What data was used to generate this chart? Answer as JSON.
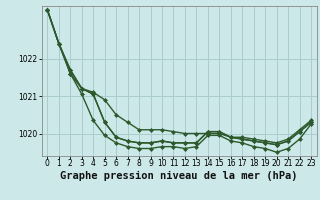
{
  "background_color": "#cce8e8",
  "grid_color": "#aacccc",
  "line_color": "#2d5a2d",
  "marker": "D",
  "markersize": 2.0,
  "linewidth": 1.0,
  "title": "Graphe pression niveau de la mer (hPa)",
  "title_fontsize": 7.5,
  "xlim": [
    -0.5,
    23.5
  ],
  "ylim": [
    1019.4,
    1023.4
  ],
  "yticks": [
    1020,
    1021,
    1022
  ],
  "xticks": [
    0,
    1,
    2,
    3,
    4,
    5,
    6,
    7,
    8,
    9,
    10,
    11,
    12,
    13,
    14,
    15,
    16,
    17,
    18,
    19,
    20,
    21,
    22,
    23
  ],
  "series": [
    [
      1023.3,
      1022.4,
      1021.7,
      1021.2,
      1021.1,
      1020.9,
      1020.5,
      1020.3,
      1020.1,
      1020.1,
      1020.1,
      1020.05,
      1020.0,
      1020.0,
      1020.0,
      1020.0,
      1019.9,
      1019.9,
      1019.85,
      1019.8,
      1019.75,
      1019.85,
      1020.1,
      1020.35
    ],
    [
      1023.3,
      1022.4,
      1021.6,
      1021.2,
      1021.05,
      1020.3,
      1019.9,
      1019.8,
      1019.75,
      1019.75,
      1019.8,
      1019.75,
      1019.75,
      1019.75,
      1020.05,
      1020.05,
      1019.9,
      1019.85,
      1019.8,
      1019.75,
      1019.7,
      1019.8,
      1020.05,
      1020.3
    ],
    [
      1023.3,
      1022.4,
      1021.6,
      1021.05,
      1020.35,
      1019.95,
      1019.75,
      1019.65,
      1019.6,
      1019.6,
      1019.65,
      1019.65,
      1019.6,
      1019.65,
      1019.95,
      1019.95,
      1019.8,
      1019.75,
      1019.65,
      1019.6,
      1019.5,
      1019.6,
      1019.85,
      1020.25
    ],
    [
      1023.3,
      1022.4,
      1021.7,
      1021.2,
      1021.05,
      1020.3,
      1019.9,
      1019.8,
      1019.75,
      1019.75,
      1019.8,
      1019.75,
      1019.75,
      1019.75,
      1020.05,
      1020.05,
      1019.9,
      1019.85,
      1019.8,
      1019.75,
      1019.7,
      1019.8,
      1020.05,
      1020.3
    ]
  ]
}
